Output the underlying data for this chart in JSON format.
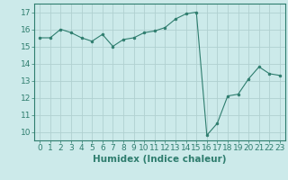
{
  "x": [
    0,
    1,
    2,
    3,
    4,
    5,
    6,
    7,
    8,
    9,
    10,
    11,
    12,
    13,
    14,
    15,
    16,
    17,
    18,
    19,
    20,
    21,
    22,
    23
  ],
  "y": [
    15.5,
    15.5,
    16.0,
    15.8,
    15.5,
    15.3,
    15.7,
    15.0,
    15.4,
    15.5,
    15.8,
    15.9,
    16.1,
    16.6,
    16.9,
    17.0,
    9.8,
    10.5,
    12.1,
    12.2,
    13.1,
    13.8,
    13.4,
    13.3
  ],
  "line_color": "#2e7d6e",
  "marker": "o",
  "marker_size": 2.0,
  "bg_color": "#cceaea",
  "grid_color": "#b0d0d0",
  "xlabel": "Humidex (Indice chaleur)",
  "xlim": [
    -0.5,
    23.5
  ],
  "ylim": [
    9.5,
    17.5
  ],
  "yticks": [
    10,
    11,
    12,
    13,
    14,
    15,
    16,
    17
  ],
  "xticks": [
    0,
    1,
    2,
    3,
    4,
    5,
    6,
    7,
    8,
    9,
    10,
    11,
    12,
    13,
    14,
    15,
    16,
    17,
    18,
    19,
    20,
    21,
    22,
    23
  ],
  "axis_color": "#2e7d6e",
  "tick_color": "#2e7d6e",
  "label_fontsize": 7.5,
  "tick_fontsize": 6.5
}
